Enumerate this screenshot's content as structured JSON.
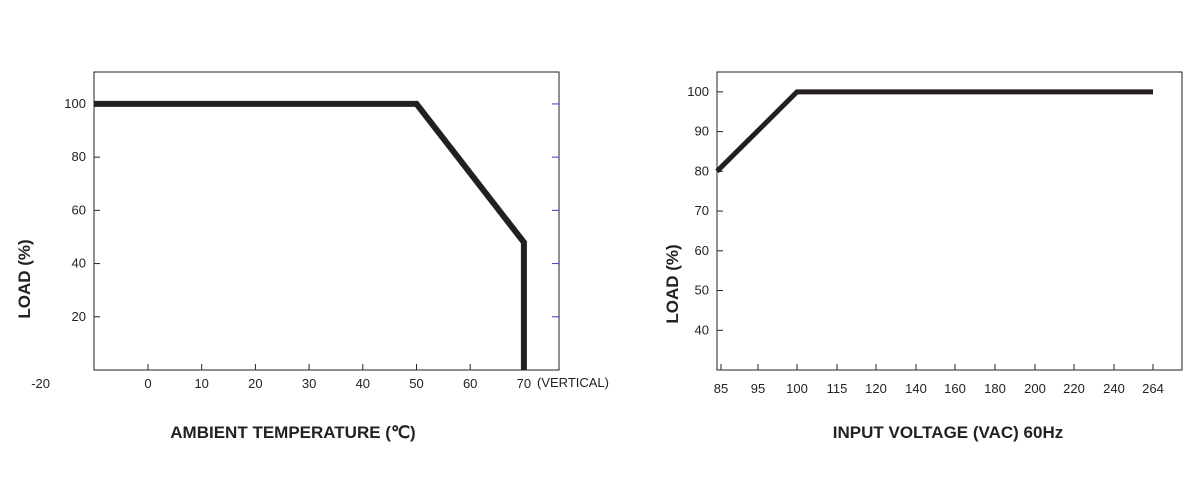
{
  "chart_data": [
    {
      "type": "line",
      "xlabel": "AMBIENT TEMPERATURE (℃)",
      "ylabel": "LOAD (%)",
      "x_tick_labels": [
        "-20",
        "0",
        "10",
        "20",
        "30",
        "40",
        "50",
        "60",
        "70"
      ],
      "x_axis_suffix": "(VERTICAL)",
      "y_tick_labels": [
        "20",
        "40",
        "60",
        "80",
        "100"
      ],
      "xlim": [
        -20,
        75
      ],
      "ylim": [
        0,
        112
      ],
      "grid": false,
      "series": [
        {
          "x": [
            -20,
            50,
            70,
            70
          ],
          "y": [
            100,
            100,
            48,
            0
          ]
        }
      ],
      "colors": {
        "line": "#231f20",
        "right_ticks": "#3a3ad8"
      }
    },
    {
      "type": "line",
      "xlabel": "INPUT VOLTAGE (VAC) 60Hz",
      "ylabel": "LOAD (%)",
      "x_tick_labels": [
        "85",
        "95",
        "100",
        "115",
        "120",
        "140",
        "160",
        "180",
        "200",
        "220",
        "240",
        "264"
      ],
      "y_tick_labels": [
        "40",
        "50",
        "60",
        "70",
        "80",
        "90",
        "100"
      ],
      "ylim": [
        30,
        105
      ],
      "grid": false,
      "series": [
        {
          "x": [
            "85",
            "100",
            "264"
          ],
          "y": [
            80,
            100,
            100
          ]
        }
      ],
      "colors": {
        "line": "#231f20"
      }
    }
  ]
}
